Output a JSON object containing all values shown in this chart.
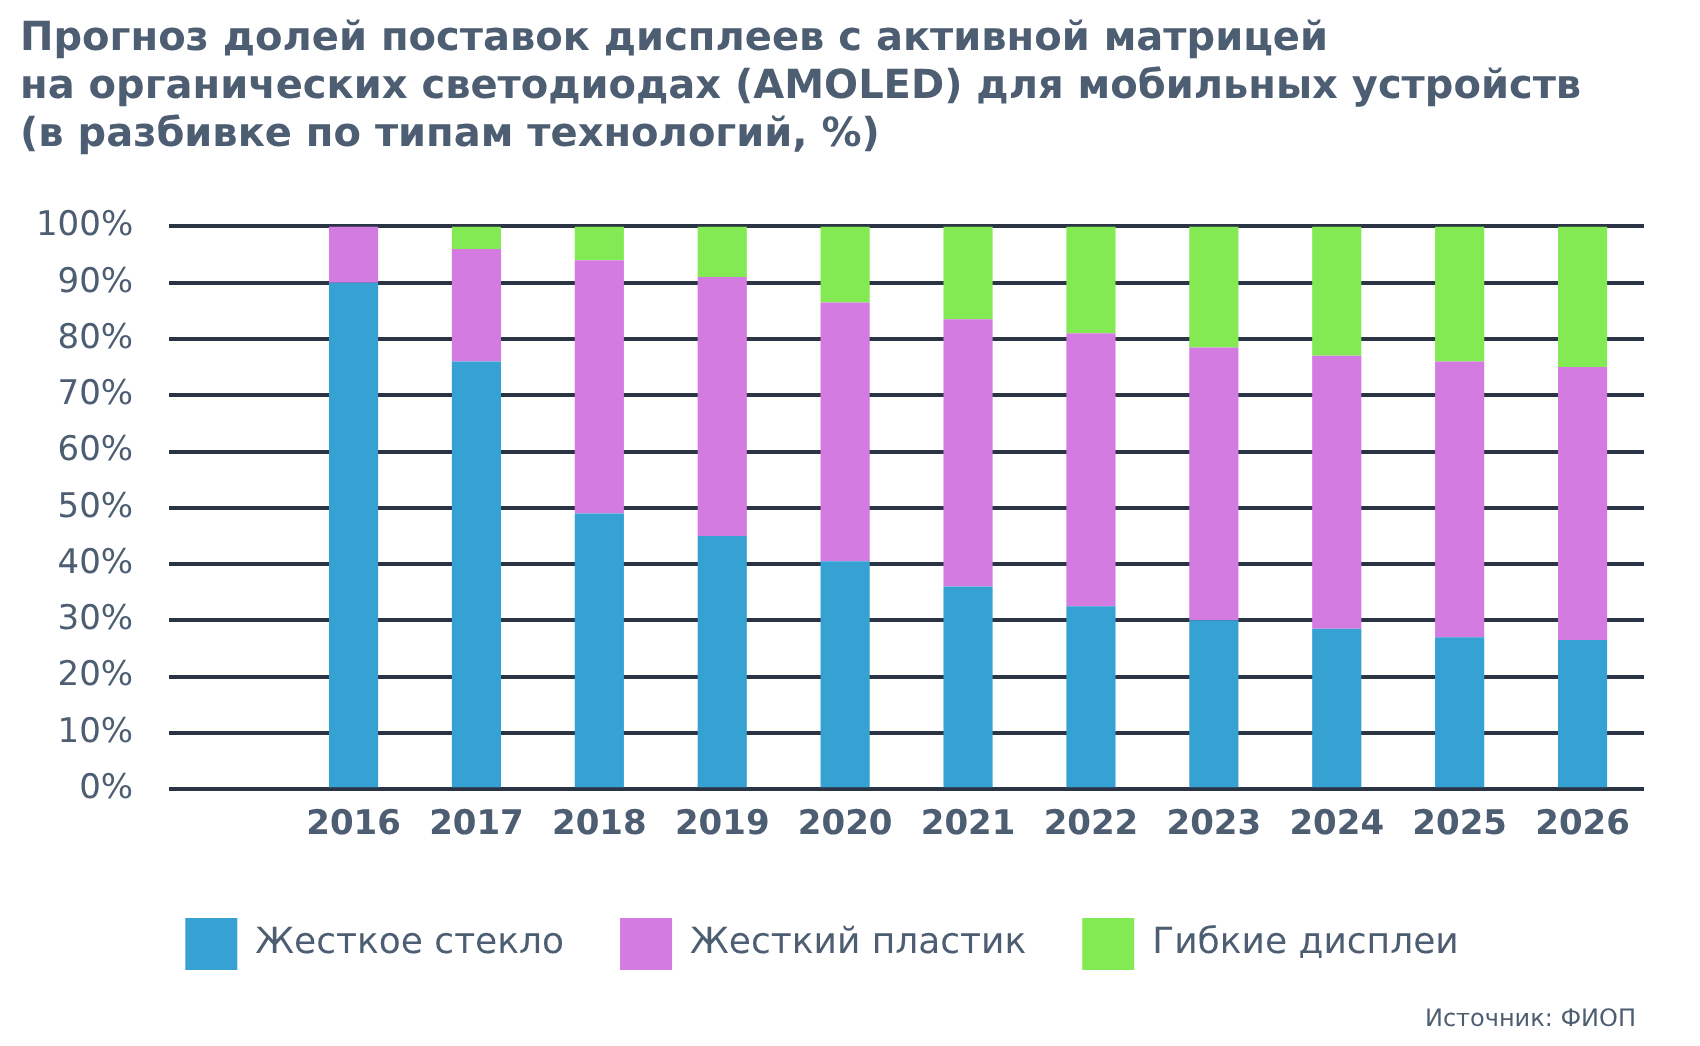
{
  "chart_data": {
    "type": "bar",
    "title": "Прогноз долей поставок дисплеев с активной матрицей\nна органических светодиодах (AMOLED) для мобильных устройств\n(в разбивке по типам технологий, %)",
    "categories": [
      null,
      "2016",
      "2017",
      "2018",
      "2019",
      "2020",
      "2021",
      "2022",
      "2023",
      "2024",
      "2025",
      "2026"
    ],
    "series": [
      {
        "name": "Жесткое стекло",
        "color": "#36a2d4",
        "values": [
          null,
          90,
          76,
          49,
          45,
          40.5,
          36,
          32.5,
          30,
          28.5,
          27,
          26.5
        ]
      },
      {
        "name": "Жесткий пластик",
        "color": "#d47be2",
        "values": [
          null,
          10,
          20,
          45,
          46,
          46,
          47.5,
          48.5,
          48.5,
          48.5,
          49,
          48.5
        ]
      },
      {
        "name": "Гибкие дисплеи",
        "color": "#84ea54",
        "values": [
          null,
          0,
          4,
          6,
          9,
          13.5,
          16.5,
          19,
          21.5,
          23,
          24,
          25
        ]
      }
    ],
    "stacked": true,
    "ylim": [
      0,
      100
    ],
    "yticks": [
      {
        "value": 0,
        "label": "0%"
      },
      {
        "value": 10,
        "label": "10%"
      },
      {
        "value": 20,
        "label": "20%"
      },
      {
        "value": 30,
        "label": "30%"
      },
      {
        "value": 40,
        "label": "40%"
      },
      {
        "value": 50,
        "label": "50%"
      },
      {
        "value": 60,
        "label": "60%"
      },
      {
        "value": 70,
        "label": "70%"
      },
      {
        "value": 80,
        "label": "80%"
      },
      {
        "value": 90,
        "label": "90%"
      },
      {
        "value": 100,
        "label": "100%"
      }
    ],
    "grid": "y",
    "legend": "bottom",
    "annotations": [
      "Источник: ФИОП"
    ]
  }
}
